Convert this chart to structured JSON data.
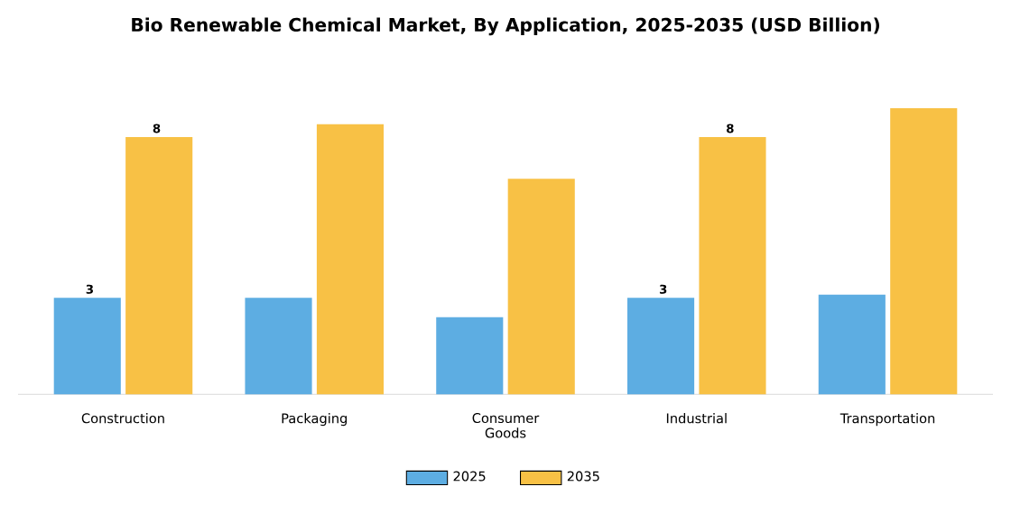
{
  "chart_data": {
    "type": "bar",
    "title": "Bio Renewable Chemical Market, By Application, 2025-2035 (USD Billion)",
    "categories": [
      "Construction",
      "Packaging",
      "Consumer Goods",
      "Industrial",
      "Transportation"
    ],
    "series": [
      {
        "name": "2025",
        "color": "#5dade2",
        "values": [
          3,
          3.0,
          2.4,
          3,
          3.1
        ],
        "value_labels": [
          "3",
          null,
          null,
          "3",
          null
        ]
      },
      {
        "name": "2035",
        "color": "#f8c145",
        "values": [
          8,
          8.4,
          6.7,
          8,
          8.9
        ],
        "value_labels": [
          "8",
          null,
          null,
          "8",
          null
        ]
      }
    ],
    "legend": "bottom"
  }
}
